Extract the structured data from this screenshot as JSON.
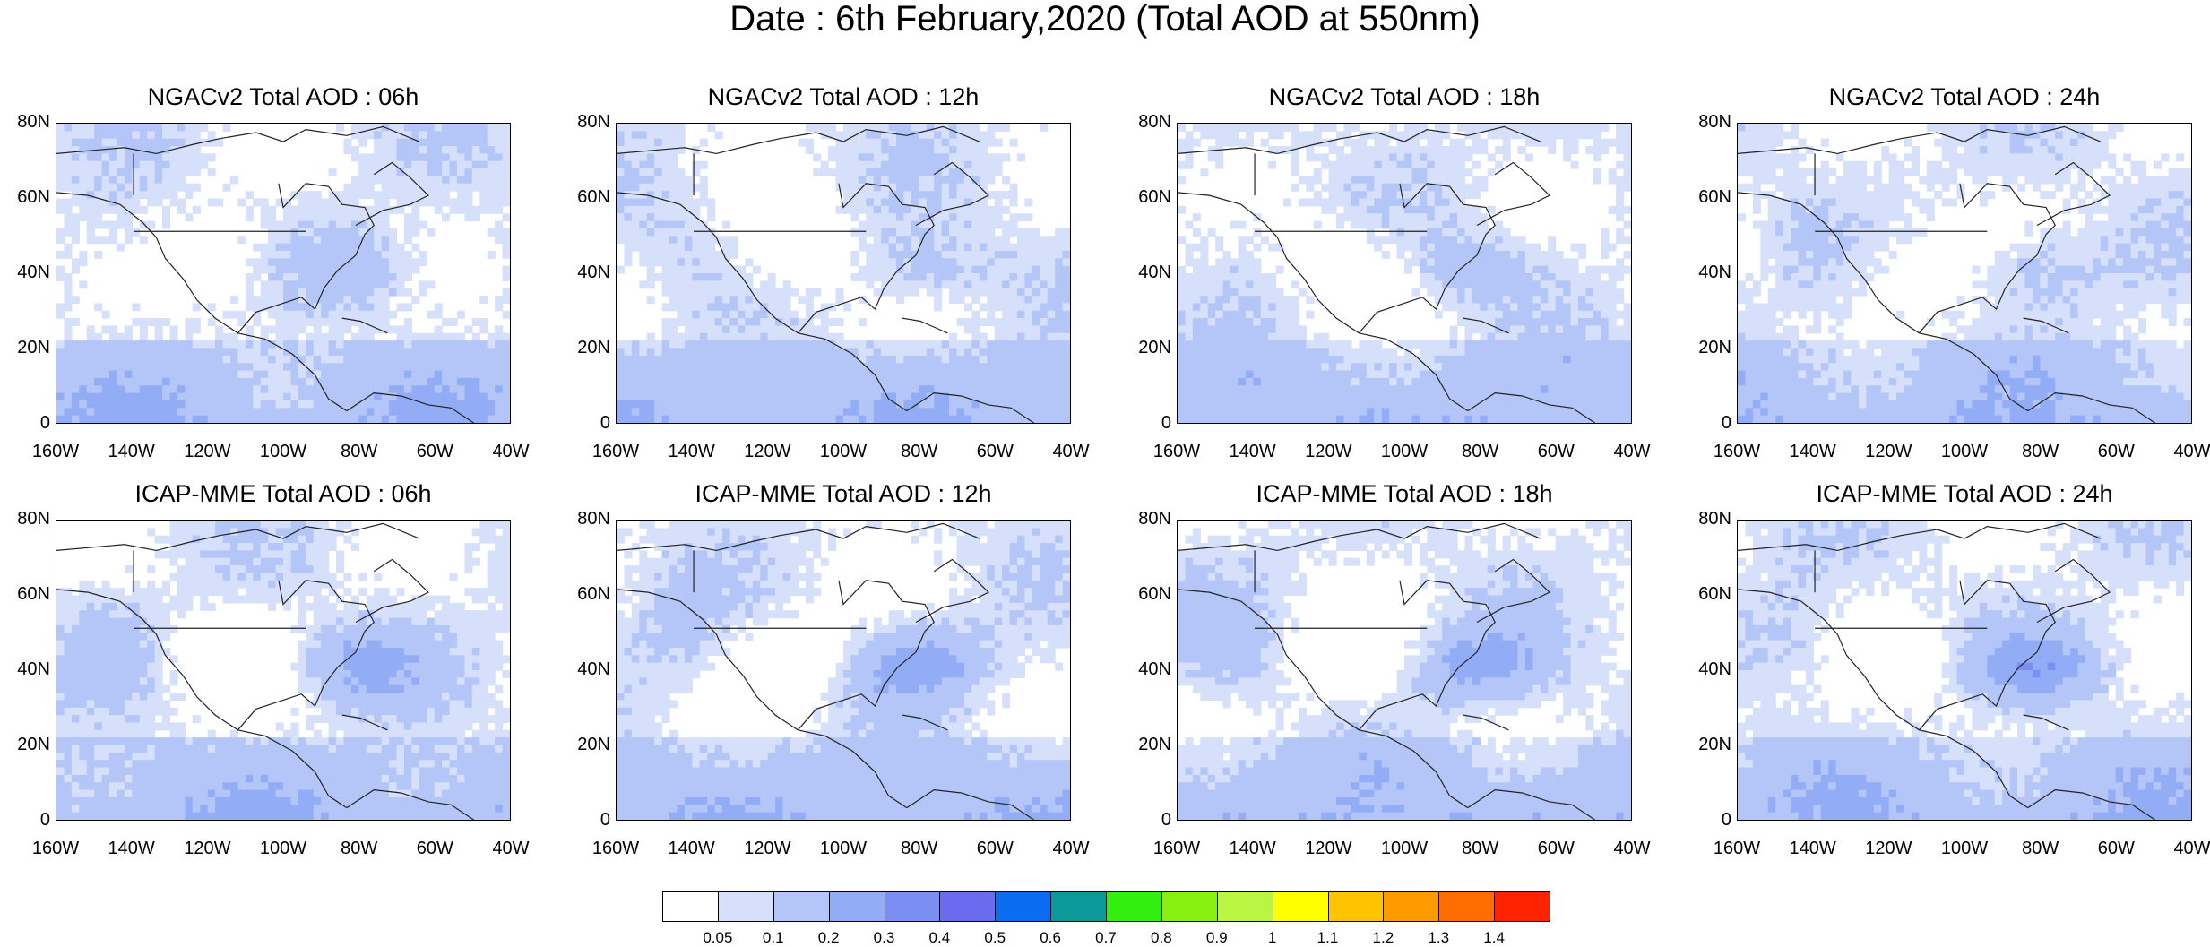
{
  "title": "Date : 6th February,2020 (Total AOD at 550nm)",
  "map": {
    "lat_ticks": [
      "80N",
      "60N",
      "40N",
      "20N",
      "0"
    ],
    "lon_ticks": [
      "160W",
      "140W",
      "120W",
      "100W",
      "80W",
      "60W",
      "40W"
    ],
    "panels": [
      {
        "title": "NGACv2 Total AOD : 06h",
        "model": "NGACv2",
        "hour": "06h",
        "intensity": 0.45
      },
      {
        "title": "NGACv2 Total AOD : 12h",
        "model": "NGACv2",
        "hour": "12h",
        "intensity": 0.45
      },
      {
        "title": "NGACv2 Total AOD : 18h",
        "model": "NGACv2",
        "hour": "18h",
        "intensity": 0.45
      },
      {
        "title": "NGACv2 Total AOD : 24h",
        "model": "NGACv2",
        "hour": "24h",
        "intensity": 0.45
      },
      {
        "title": "ICAP-MME Total AOD : 06h",
        "model": "ICAP-MME",
        "hour": "06h",
        "intensity": 0.75
      },
      {
        "title": "ICAP-MME Total AOD : 12h",
        "model": "ICAP-MME",
        "hour": "12h",
        "intensity": 0.85
      },
      {
        "title": "ICAP-MME Total AOD : 18h",
        "model": "ICAP-MME",
        "hour": "18h",
        "intensity": 0.85
      },
      {
        "title": "ICAP-MME Total AOD : 24h",
        "model": "ICAP-MME",
        "hour": "24h",
        "intensity": 0.9
      }
    ]
  },
  "colorbar": {
    "labels": [
      "0.05",
      "0.1",
      "0.2",
      "0.3",
      "0.4",
      "0.5",
      "0.6",
      "0.7",
      "0.8",
      "0.9",
      "1",
      "1.1",
      "1.2",
      "1.3",
      "1.4"
    ],
    "colors": [
      "#ffffff",
      "#d6e0fb",
      "#b4c6f8",
      "#93acf6",
      "#7b8ff2",
      "#6a6cf0",
      "#0a6cf0",
      "#0b9999",
      "#33ee11",
      "#88f011",
      "#bbf544",
      "#ffff00",
      "#ffc400",
      "#ff9a00",
      "#ff6c00",
      "#ff2200"
    ]
  }
}
